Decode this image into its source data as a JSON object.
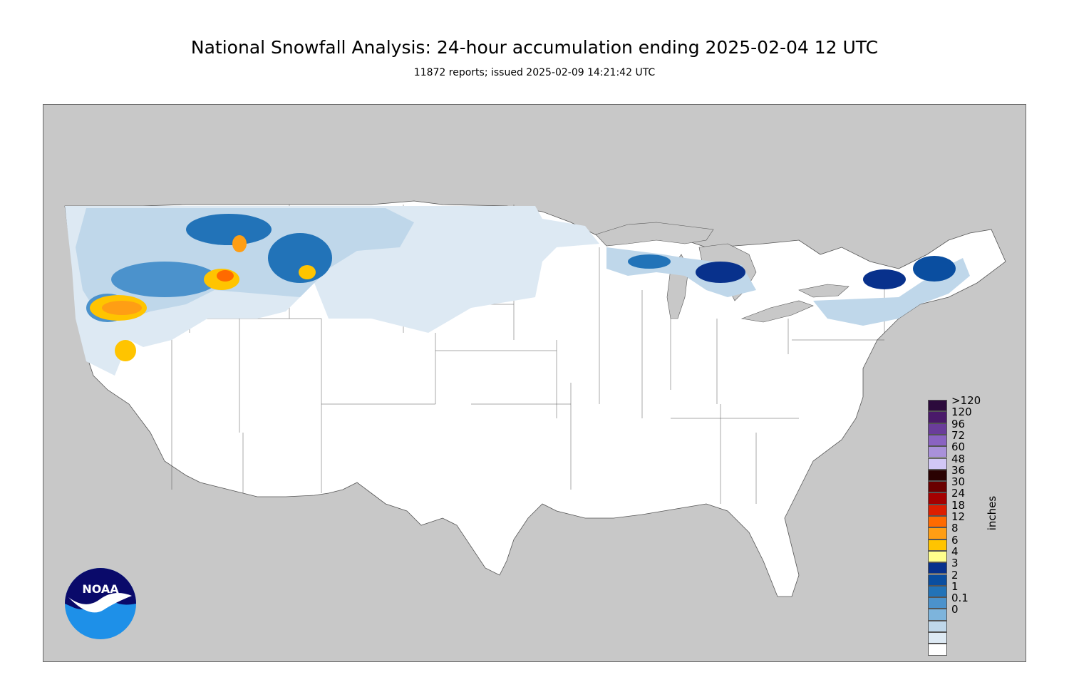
{
  "title": "National Snowfall Analysis: 24-hour accumulation ending 2025-02-04 12 UTC",
  "subtitle": "11872 reports; issued 2025-02-09 14:21:42 UTC",
  "logo_text": "NOAA",
  "legend": {
    "units": "inches",
    "items": [
      {
        "label": ">120",
        "color": "#2c0a3c"
      },
      {
        "label": "120",
        "color": "#4a1a6a"
      },
      {
        "label": "96",
        "color": "#6a3d9a"
      },
      {
        "label": "72",
        "color": "#8a63c2"
      },
      {
        "label": "60",
        "color": "#a991da"
      },
      {
        "label": "48",
        "color": "#d1c7f5"
      },
      {
        "label": "36",
        "color": "#2a0202"
      },
      {
        "label": "30",
        "color": "#6a0000"
      },
      {
        "label": "24",
        "color": "#a40000"
      },
      {
        "label": "18",
        "color": "#dc1e00"
      },
      {
        "label": "12",
        "color": "#ff6a00"
      },
      {
        "label": "8",
        "color": "#ff9e14"
      },
      {
        "label": "6",
        "color": "#ffc400"
      },
      {
        "label": "4",
        "color": "#ffff8c"
      },
      {
        "label": "3",
        "color": "#08318c"
      },
      {
        "label": "2",
        "color": "#0a4ea0"
      },
      {
        "label": "1",
        "color": "#2273b8"
      },
      {
        "label": "0.1",
        "color": "#4b92cc"
      },
      {
        "label": "0",
        "color": "#7db4dc"
      },
      {
        "label": "",
        "color": "#bfd7ea"
      },
      {
        "label": "",
        "color": "#dde9f3"
      },
      {
        "label": "",
        "color": "#ffffff"
      }
    ]
  },
  "colors": {
    "background": "#c8c8c8",
    "land": "#ffffff",
    "border": "#555555"
  }
}
